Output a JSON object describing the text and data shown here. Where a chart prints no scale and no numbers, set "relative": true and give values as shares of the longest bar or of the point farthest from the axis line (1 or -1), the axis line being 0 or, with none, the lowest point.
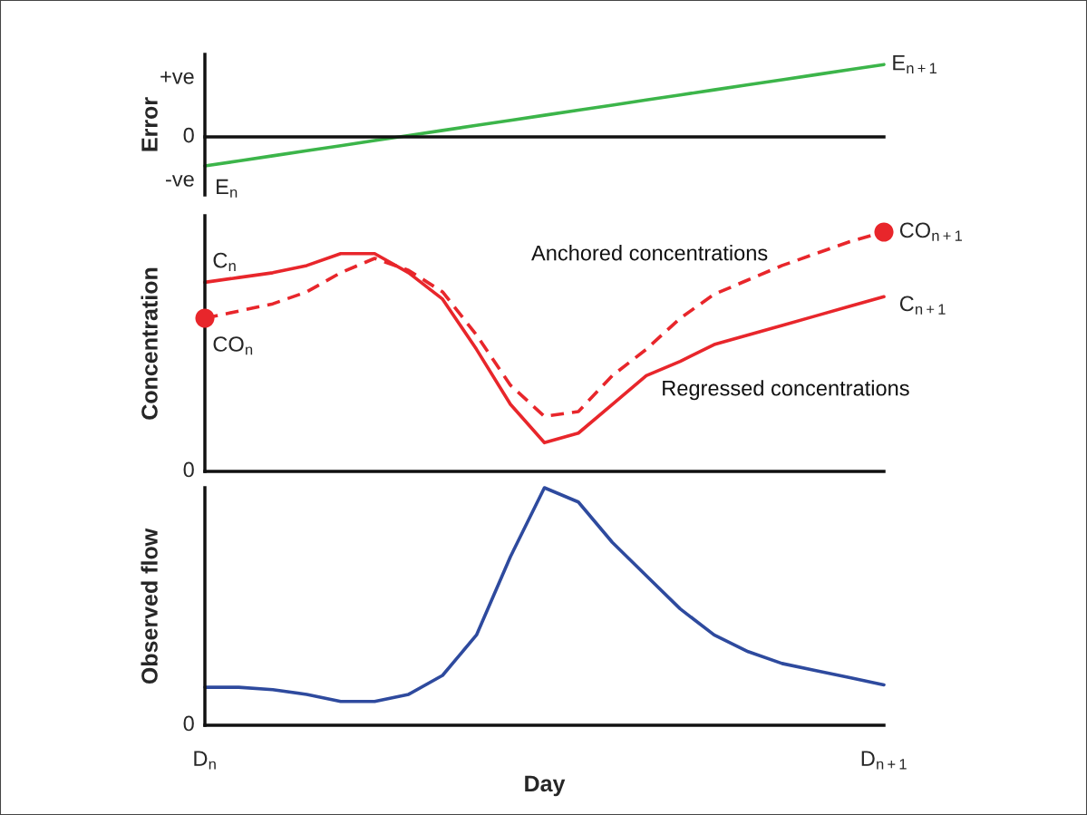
{
  "chart_data": [
    {
      "type": "line",
      "relative": true,
      "ylabel": "Error",
      "tick_labels": false,
      "legend": false,
      "grid": false,
      "categories": [
        "D$_{n}$",
        null,
        null,
        null,
        null,
        null,
        null,
        null,
        null,
        null,
        null,
        null,
        null,
        null,
        null,
        null,
        null,
        null,
        null,
        null,
        "D$_{n+1}$"
      ],
      "series": [
        {
          "color": "#3cb54a",
          "line_style": "solid",
          "values": [
            -0.4,
            -0.33,
            -0.26,
            -0.19,
            -0.12,
            -0.05,
            0.02,
            0.09,
            0.16,
            0.23,
            0.3,
            0.37,
            0.44,
            0.51,
            0.58,
            0.65,
            0.72,
            0.79,
            0.86,
            0.93,
            1.0
          ]
        }
      ],
      "annotations": [
        "0",
        "+ve",
        "-ve",
        {
          "text": "E$_{n}$",
          "x": "D$_{n}$",
          "y": -0.4
        },
        {
          "text": "E$_{n+1}$",
          "x": "D$_{n+1}$",
          "y": 1.0
        }
      ]
    },
    {
      "type": "line",
      "relative": true,
      "ylabel": "Concentration",
      "tick_labels": false,
      "legend": false,
      "grid": false,
      "categories": [
        "D$_{n}$",
        null,
        null,
        null,
        null,
        null,
        null,
        null,
        null,
        null,
        null,
        null,
        null,
        null,
        null,
        null,
        null,
        null,
        null,
        null,
        "D$_{n+1}$"
      ],
      "series": [
        {
          "name": "Regressed concentrations",
          "color": "#e8262b",
          "line_style": "solid",
          "values": [
            0.79,
            0.81,
            0.83,
            0.86,
            0.91,
            0.91,
            0.83,
            0.72,
            0.51,
            0.28,
            0.12,
            0.16,
            0.28,
            0.4,
            0.46,
            0.53,
            0.57,
            0.61,
            0.65,
            0.69,
            0.73
          ]
        },
        {
          "name": "Anchored concentrations",
          "color": "#e8262b",
          "line_style": "dashed",
          "values": [
            0.64,
            0.67,
            0.7,
            0.75,
            0.83,
            0.89,
            0.84,
            0.75,
            0.57,
            0.36,
            0.23,
            0.25,
            0.4,
            0.51,
            0.64,
            0.74,
            0.8,
            0.86,
            0.91,
            0.96,
            1.0
          ]
        },
        {
          "type": "scatter",
          "color": "#e8262b",
          "marker": "circle",
          "values": [
            0.64,
            null,
            null,
            null,
            null,
            null,
            null,
            null,
            null,
            null,
            null,
            null,
            null,
            null,
            null,
            null,
            null,
            null,
            null,
            null,
            1.0
          ]
        }
      ],
      "annotations": [
        "0",
        {
          "text": "C$_{n}$",
          "x": "D$_{n}$",
          "y": 0.79
        },
        {
          "text": "CO$_{n}$",
          "x": "D$_{n}$",
          "y": 0.64
        },
        {
          "text": "CO$_{n+1}$",
          "x": "D$_{n+1}$",
          "y": 1.0
        },
        {
          "text": "C$_{n+1}$",
          "x": "D$_{n+1}$",
          "y": 0.73
        }
      ]
    },
    {
      "type": "line",
      "relative": true,
      "ylabel": "Observed flow",
      "xlabel": "Day",
      "tick_labels": "x",
      "legend": false,
      "grid": false,
      "categories": [
        "D$_{n}$",
        null,
        null,
        null,
        null,
        null,
        null,
        null,
        null,
        null,
        null,
        null,
        null,
        null,
        null,
        null,
        null,
        null,
        null,
        null,
        "D$_{n+1}$"
      ],
      "series": [
        {
          "color": "#2e4a9e",
          "line_style": "solid",
          "values": [
            0.16,
            0.16,
            0.15,
            0.13,
            0.1,
            0.1,
            0.13,
            0.21,
            0.38,
            0.71,
            1.0,
            0.94,
            0.77,
            0.63,
            0.49,
            0.38,
            0.31,
            0.26,
            0.23,
            0.2,
            0.17
          ]
        }
      ],
      "annotations": [
        "0"
      ]
    }
  ]
}
